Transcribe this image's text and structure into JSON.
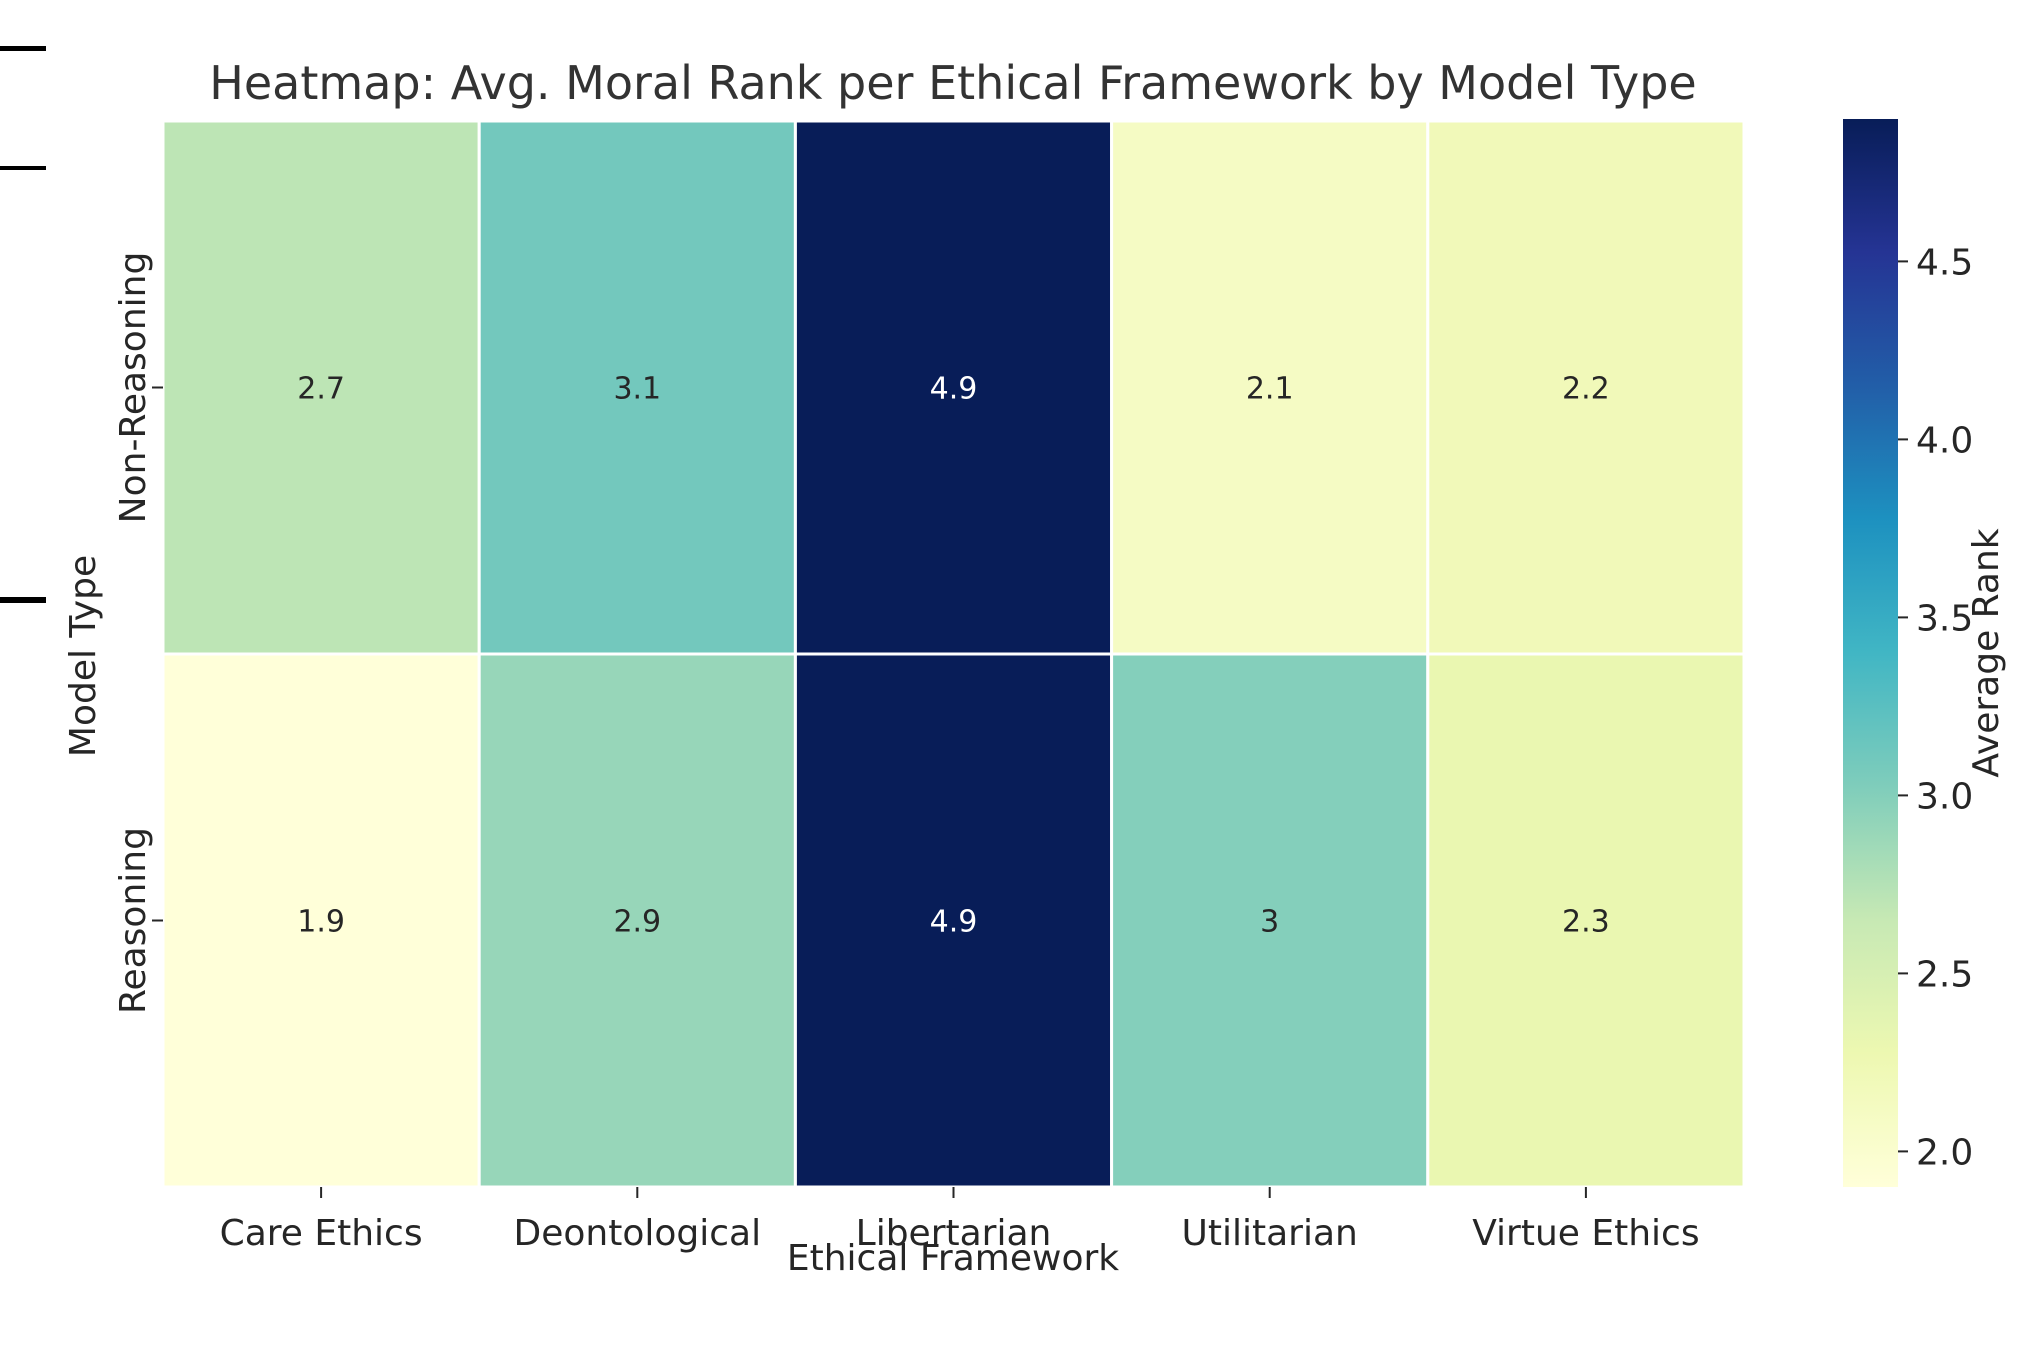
{
  "chart_data": {
    "type": "heatmap",
    "title": "Heatmap: Avg. Moral Rank per Ethical Framework by Model Type",
    "xlabel": "Ethical Framework",
    "ylabel": "Model Type",
    "x_categories": [
      "Care Ethics",
      "Deontological",
      "Libertarian",
      "Utilitarian",
      "Virtue Ethics"
    ],
    "y_categories": [
      "Non-Reasoning",
      "Reasoning"
    ],
    "values": [
      [
        2.7,
        3.1,
        4.9,
        2.1,
        2.2
      ],
      [
        1.9,
        2.9,
        4.9,
        3.0,
        2.3
      ]
    ],
    "cell_labels": [
      [
        "2.7",
        "3.1",
        "4.9",
        "2.1",
        "2.2"
      ],
      [
        "1.9",
        "2.9",
        "4.9",
        "3",
        "2.3"
      ]
    ],
    "colorbar": {
      "label": "Average Rank",
      "range": [
        1.9,
        4.9
      ],
      "ticks": [
        2.0,
        2.5,
        3.0,
        3.5,
        4.0,
        4.5
      ],
      "tick_labels": [
        "2.0",
        "2.5",
        "3.0",
        "3.5",
        "4.0",
        "4.5"
      ],
      "colormap": "YlGnBu",
      "colormap_stops": [
        "#ffffd9",
        "#edf8b1",
        "#c7e9b4",
        "#7fcdbb",
        "#41b6c4",
        "#1d91c0",
        "#225ea8",
        "#253494",
        "#081d58"
      ]
    }
  }
}
